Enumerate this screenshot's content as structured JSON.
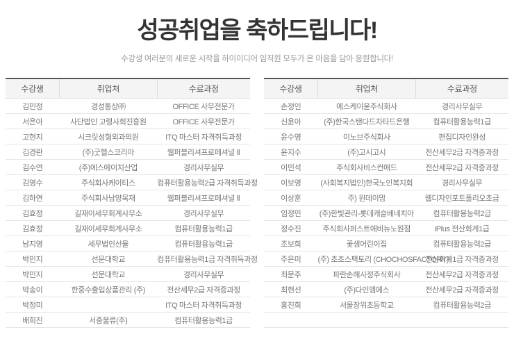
{
  "header": {
    "title": "성공취업을 축하드립니다!",
    "subtitle": "수강생 여러분의 새로운 시작을 하이미디어 임직원 모두가 온 마음을 담아 응원합니다!"
  },
  "columns": [
    "수강생",
    "취업처",
    "수료과정"
  ],
  "left_table": {
    "rows": [
      {
        "student": "김민정",
        "employer": "경성통상㈜",
        "course": "OFFICE 사무전문가"
      },
      {
        "student": "서은아",
        "employer": "사단법인 고령사회진흥원",
        "course": "OFFICE 사무전문가"
      },
      {
        "student": "고현지",
        "employer": "시크릿성형외과의원",
        "course": "ITQ 마스터 자격취득과정"
      },
      {
        "student": "김경란",
        "employer": "(주)굿헬스코리아",
        "course": "웹퍼블리셔프로페셔널 Ⅱ"
      },
      {
        "student": "김수연",
        "employer": "(주)에스에이치산업",
        "course": "경리사무실무"
      },
      {
        "student": "김영수",
        "employer": "주식회사케이티스",
        "course": "컴퓨터활용능력2급 자격취득과정"
      },
      {
        "student": "김하연",
        "employer": "주식회사남양목재",
        "course": "웹퍼블리셔프로페셔널 Ⅱ"
      },
      {
        "student": "김효정",
        "employer": "길재이세무회계사무소",
        "course": "경리사무실무"
      },
      {
        "student": "김효정",
        "employer": "길재이세무회계사무소",
        "course": "컴퓨터활용능력1급"
      },
      {
        "student": "남지영",
        "employer": "세무법인선율",
        "course": "컴퓨터활용능력1급"
      },
      {
        "student": "박민지",
        "employer": "선문대학교",
        "course": "컴퓨터활용능력1급 자격취득과정"
      },
      {
        "student": "박민지",
        "employer": "선문대학교",
        "course": "경리사무실무"
      },
      {
        "student": "박송이",
        "employer": "한중수출입상품관리 (주)",
        "course": "전산세무2급 자격증과정"
      },
      {
        "student": "박정미",
        "employer": "",
        "course": "ITQ 마스터 자격취득과정"
      },
      {
        "student": "배희진",
        "employer": "서중물류(주)",
        "course": "컴퓨터활용능력1급"
      }
    ]
  },
  "right_table": {
    "rows": [
      {
        "student": "손정인",
        "employer": "에스케이윤주식회사",
        "course": "경리사무실무"
      },
      {
        "student": "신윤아",
        "employer": "(주)한국스탠다드차타드은행",
        "course": "컴퓨터활용능력1급"
      },
      {
        "student": "윤수영",
        "employer": "이노브주식회사",
        "course": "편집디자인완성"
      },
      {
        "student": "윤지수",
        "employer": "(주)고시고시",
        "course": "전산세무2급 자격증과정"
      },
      {
        "student": "이민석",
        "employer": "주식회사비스컨애드",
        "course": "전산세무2급 자격증과정"
      },
      {
        "student": "이보영",
        "employer": "(사회복지법인)한국노인복지회",
        "course": "경리사무실무"
      },
      {
        "student": "이상훈",
        "employer": "주) 원데이맘",
        "course": "웹디자인포트폴리오초급"
      },
      {
        "student": "임정민",
        "employer": "(주)한빛관리-롯데캐슬베네치아",
        "course": "컴퓨터활용능력2급"
      },
      {
        "student": "정수진",
        "employer": "주식회사퍼스트애비뉴노원점",
        "course": "iPlus 전산회계1급"
      },
      {
        "student": "조보희",
        "employer": "꽃샘어린이집",
        "course": "컴퓨터활용능력2급"
      },
      {
        "student": "주은미",
        "employer": "(주) 초초스팩토리 (CHOCHOSFACTORY)",
        "course": "전산회계1급 자격증과정"
      },
      {
        "student": "최문주",
        "employer": "파란손해사정주식회사",
        "course": "전산세무2급 자격증과정"
      },
      {
        "student": "최현선",
        "employer": "(주)다인엠에스",
        "course": "전산세무2급 자격증과정"
      },
      {
        "student": "홍진희",
        "employer": "서울장위초등학교",
        "course": "컴퓨터활용능력2급"
      },
      {
        "student": "",
        "employer": "",
        "course": ""
      }
    ]
  },
  "colors": {
    "title_text": "#333333",
    "subtitle_text": "#999999",
    "table_top_border": "#555555",
    "header_background": "#f4f4f4",
    "header_text": "#555555",
    "cell_text": "#777777",
    "row_border": "#e6e6e6"
  }
}
